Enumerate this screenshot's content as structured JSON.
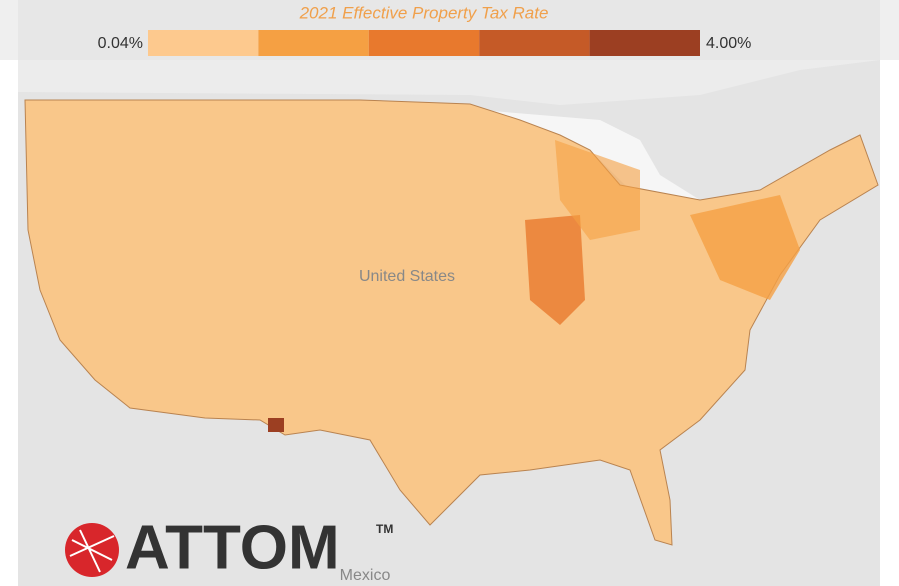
{
  "title": "2021 Effective Property Tax Rate",
  "legend": {
    "min_label": "0.04%",
    "max_label": "4.00%",
    "colors": [
      "#fdc98e",
      "#f5a043",
      "#e8792d",
      "#c55a27",
      "#9c3f22"
    ]
  },
  "map_labels": {
    "country": "United States",
    "neighbor": "Mexico"
  },
  "logo": {
    "name": "ATTOM",
    "mark": "TM"
  }
}
